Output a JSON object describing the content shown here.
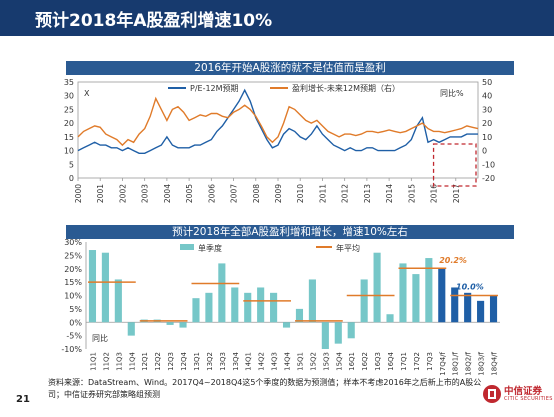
{
  "page": {
    "title": "预计2018年A股盈利增速10%",
    "page_number": "21",
    "footer": "资料来源：DataStream、Wind。2017Q4~2018Q4这5个季度的数据为预测值；样本不考虑2016年之后新上市的A股公司；中信证券研究部策略组预测",
    "logo_text": "中信证券",
    "logo_sub": "CITIC SECURITIES",
    "colors": {
      "title_bg": "#173a6e",
      "subtitle_bg": "#2a5a92",
      "pe_line": "#1f5fa6",
      "growth_line": "#e07b2a",
      "bar_light": "#76c7c8",
      "bar_dark": "#1f5fa6",
      "annual": "#e07b2a",
      "highlight_box": "#c0282f"
    }
  },
  "chart_data": [
    {
      "type": "line",
      "title": "2016年开始A股涨的就不是估值而是盈利",
      "left_axis_label": "X",
      "right_axis_label": "同比%",
      "ylim_left": [
        0,
        35
      ],
      "ylim_right": [
        -20,
        50
      ],
      "left_ticks": [
        "0",
        "5",
        "10",
        "15",
        "20",
        "25",
        "30",
        "35"
      ],
      "right_ticks": [
        "-20",
        "-10",
        "0",
        "10",
        "20",
        "30",
        "40",
        "50"
      ],
      "x_ticks": [
        "2000",
        "2001",
        "2002",
        "2003",
        "2004",
        "2005",
        "2006",
        "2007",
        "2008",
        "2009",
        "2010",
        "2011",
        "2012",
        "2013",
        "2014",
        "2015",
        "2016",
        "2017"
      ],
      "xlim": [
        2000,
        2018
      ],
      "series": [
        {
          "name": "P/E-12M预期",
          "axis": "left",
          "x": [
            2000,
            2000.25,
            2000.5,
            2000.75,
            2001,
            2001.25,
            2001.5,
            2001.75,
            2002,
            2002.25,
            2002.5,
            2002.75,
            2003,
            2003.25,
            2003.5,
            2003.75,
            2004,
            2004.25,
            2004.5,
            2004.75,
            2005,
            2005.25,
            2005.5,
            2005.75,
            2006,
            2006.25,
            2006.5,
            2006.75,
            2007,
            2007.25,
            2007.5,
            2007.75,
            2008,
            2008.25,
            2008.5,
            2008.75,
            2009,
            2009.25,
            2009.5,
            2009.75,
            2010,
            2010.25,
            2010.5,
            2010.75,
            2011,
            2011.25,
            2011.5,
            2011.75,
            2012,
            2012.25,
            2012.5,
            2012.75,
            2013,
            2013.25,
            2013.5,
            2013.75,
            2014,
            2014.25,
            2014.5,
            2014.75,
            2015,
            2015.25,
            2015.5,
            2015.75,
            2016,
            2016.25,
            2016.5,
            2016.75,
            2017,
            2017.25,
            2017.5,
            2017.75,
            2018
          ],
          "values": [
            10,
            11,
            12,
            13,
            12,
            12,
            11,
            11,
            10,
            11,
            10,
            9,
            9,
            10,
            11,
            12,
            15,
            12,
            11,
            11,
            11,
            12,
            12,
            13,
            14,
            17,
            19,
            22,
            25,
            28,
            32,
            28,
            22,
            18,
            14,
            11,
            12,
            16,
            18,
            17,
            15,
            14,
            16,
            19,
            16,
            14,
            12,
            11,
            10,
            11,
            10,
            10,
            11,
            11,
            10,
            10,
            10,
            10,
            11,
            12,
            14,
            19,
            22,
            13,
            14,
            13,
            14,
            15,
            15,
            15,
            16,
            16,
            16
          ]
        },
        {
          "name": "盈利增长-未来12M预期（右）",
          "axis": "right",
          "x": [
            2000,
            2000.25,
            2000.5,
            2000.75,
            2001,
            2001.25,
            2001.5,
            2001.75,
            2002,
            2002.25,
            2002.5,
            2002.75,
            2003,
            2003.25,
            2003.5,
            2003.75,
            2004,
            2004.25,
            2004.5,
            2004.75,
            2005,
            2005.25,
            2005.5,
            2005.75,
            2006,
            2006.25,
            2006.5,
            2006.75,
            2007,
            2007.25,
            2007.5,
            2007.75,
            2008,
            2008.25,
            2008.5,
            2008.75,
            2009,
            2009.25,
            2009.5,
            2009.75,
            2010,
            2010.25,
            2010.5,
            2010.75,
            2011,
            2011.25,
            2011.5,
            2011.75,
            2012,
            2012.25,
            2012.5,
            2012.75,
            2013,
            2013.25,
            2013.5,
            2013.75,
            2014,
            2014.25,
            2014.5,
            2014.75,
            2015,
            2015.25,
            2015.5,
            2015.75,
            2016,
            2016.25,
            2016.5,
            2016.75,
            2017,
            2017.25,
            2017.5,
            2017.75,
            2018
          ],
          "values": [
            10,
            14,
            16,
            18,
            17,
            12,
            10,
            8,
            4,
            8,
            6,
            12,
            16,
            25,
            38,
            30,
            22,
            30,
            32,
            28,
            22,
            24,
            26,
            25,
            27,
            27,
            25,
            24,
            28,
            30,
            33,
            30,
            25,
            18,
            10,
            6,
            10,
            20,
            32,
            30,
            26,
            22,
            20,
            22,
            18,
            14,
            12,
            10,
            12,
            12,
            11,
            12,
            14,
            14,
            13,
            14,
            15,
            14,
            13,
            14,
            16,
            18,
            20,
            16,
            14,
            14,
            13,
            14,
            15,
            16,
            18,
            17,
            16
          ]
        }
      ]
    },
    {
      "type": "bar",
      "title": "预计2018年全部A股盈利增和增长，增速10%左右",
      "ylim": [
        -10,
        30
      ],
      "y_ticks": [
        "30%",
        "25%",
        "20%",
        "15%",
        "10%",
        "5%",
        "0%",
        "-5%",
        "-10%"
      ],
      "y_label": "同比",
      "categories": [
        "11Q1",
        "11Q2",
        "11Q3",
        "11Q4",
        "12Q1",
        "12Q2",
        "12Q3",
        "12Q4",
        "13Q1",
        "13Q2",
        "13Q3",
        "13Q4",
        "14Q1",
        "14Q2",
        "14Q3",
        "14Q4",
        "15Q1",
        "15Q2",
        "15Q3",
        "15Q4",
        "16Q1",
        "16Q2",
        "16Q3",
        "16Q4",
        "17Q1",
        "17Q2",
        "17Q3",
        "17Q4/f",
        "18Q1/f",
        "18Q2/f",
        "18Q3/f",
        "18Q4/f"
      ],
      "series": [
        {
          "name": "单季度",
          "values": [
            27,
            26,
            16,
            -5,
            1,
            1,
            -1,
            -2,
            9,
            11,
            22,
            13,
            11,
            13,
            11,
            -2,
            5,
            16,
            -10,
            -8,
            -6,
            16,
            26,
            3,
            22,
            18,
            24,
            20,
            13,
            11,
            8,
            10
          ]
        },
        {
          "name": "年平均",
          "values": [
            15,
            15,
            15,
            15,
            0.5,
            0.5,
            0.5,
            0.5,
            14.5,
            14.5,
            14.5,
            14.5,
            8,
            8,
            8,
            8,
            0.5,
            0.5,
            0.5,
            0.5,
            10,
            10,
            10,
            10,
            20.2,
            20.2,
            20.2,
            20.2,
            10,
            10,
            10,
            10
          ]
        }
      ],
      "forecast_start_index": 27,
      "annotations": [
        "20.2%",
        "10.0%"
      ]
    }
  ]
}
